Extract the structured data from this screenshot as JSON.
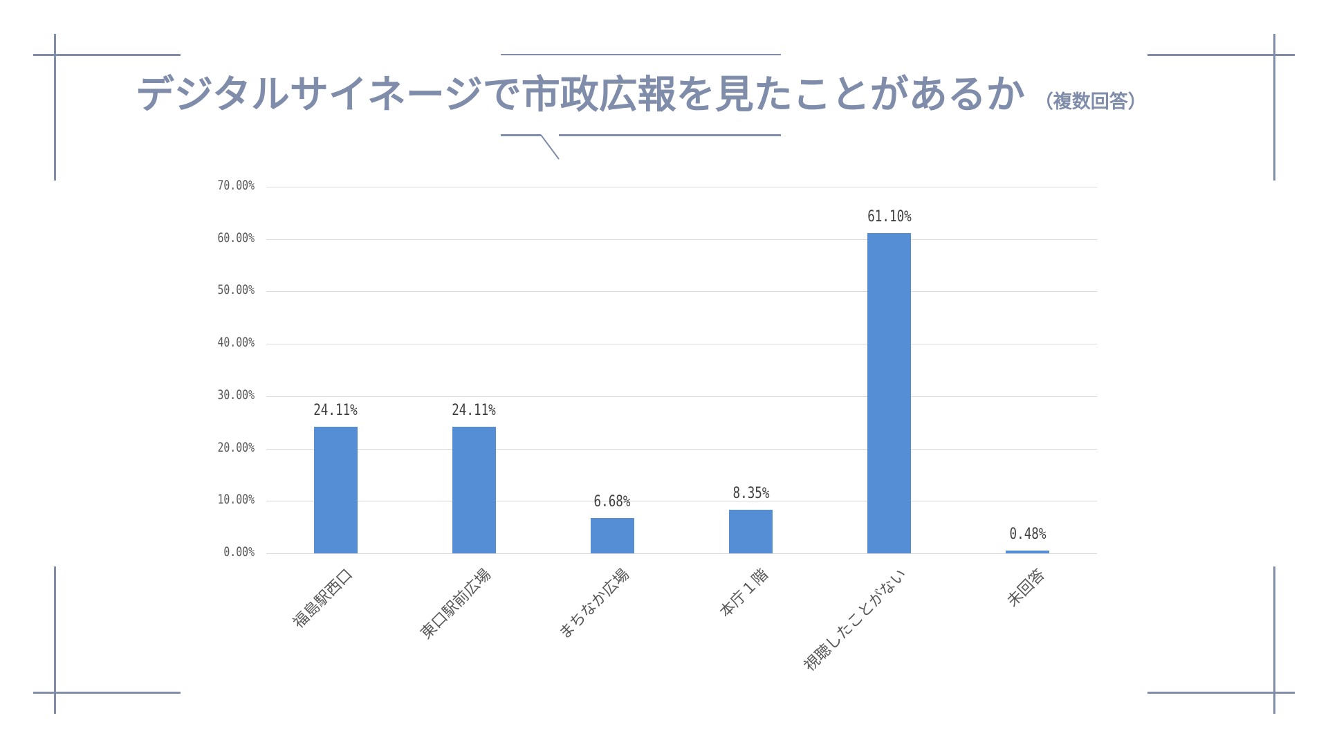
{
  "slide": {
    "title": "デジタルサイネージで市政広報を見たことがあるか",
    "subtitle": "（複数回答）",
    "accent_color": "#7f8dab",
    "bar_color": "#558ed5"
  },
  "chart_data": {
    "type": "bar",
    "title": "デジタルサイネージで市政広報を見たことがあるか（複数回答）",
    "xlabel": "",
    "ylabel": "",
    "categories": [
      "福島駅西口",
      "東口駅前広場",
      "まちなか広場",
      "本庁１階",
      "視聴したことがない",
      "未回答"
    ],
    "values": [
      24.11,
      24.11,
      6.68,
      8.35,
      61.1,
      0.48
    ],
    "value_labels": [
      "24.11%",
      "24.11%",
      "6.68%",
      "8.35%",
      "61.10%",
      "0.48%"
    ],
    "ylim": [
      0,
      70
    ],
    "yticks": [
      "0.00%",
      "10.00%",
      "20.00%",
      "30.00%",
      "40.00%",
      "50.00%",
      "60.00%",
      "70.00%"
    ],
    "grid": true,
    "legend": "none",
    "x_label_rotation": -45
  }
}
